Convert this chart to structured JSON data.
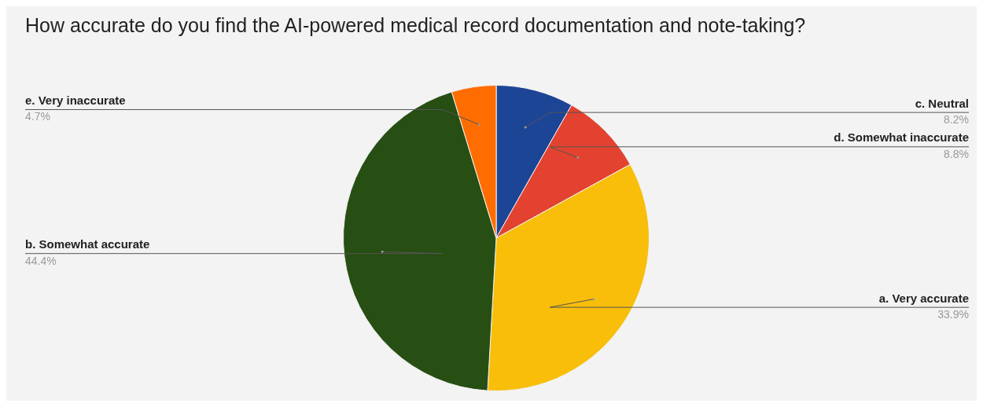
{
  "chart_data": {
    "type": "pie",
    "title": "How accurate do you find the AI-powered medical record documentation and note-taking?",
    "categories": [
      "c. Neutral",
      "d. Somewhat inaccurate",
      "a. Very accurate",
      "b. Somewhat accurate",
      "e. Very inaccurate"
    ],
    "values": [
      8.2,
      8.8,
      33.9,
      44.4,
      4.7
    ],
    "value_labels": [
      "8.2%",
      "8.8%",
      "33.9%",
      "44.4%",
      "4.7%"
    ],
    "colors": [
      "#1c4596",
      "#e2422f",
      "#f8be09",
      "#274e13",
      "#ff6d01"
    ],
    "legend": false
  }
}
